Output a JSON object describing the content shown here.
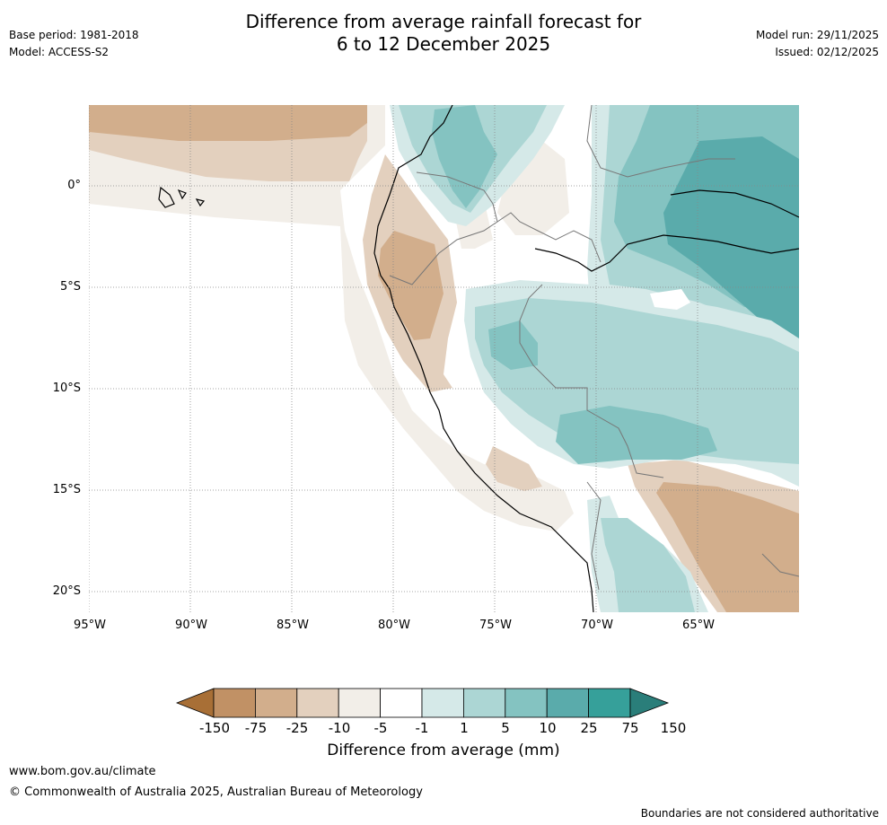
{
  "header": {
    "title_line1": "Difference from average rainfall forecast for",
    "title_line2": "6 to 12 December 2025",
    "base_period": "Base period: 1981-2018",
    "model": "Model: ACCESS-S2",
    "model_run": "Model run: 29/11/2025",
    "issued": "Issued: 02/12/2025"
  },
  "map": {
    "lat_labels": [
      "0°",
      "5°S",
      "10°S",
      "15°S",
      "20°S"
    ],
    "lon_labels": [
      "95°W",
      "90°W",
      "85°W",
      "80°W",
      "75°W",
      "70°W",
      "65°W"
    ],
    "lat_values": [
      0,
      -5,
      -10,
      -15,
      -20
    ],
    "lon_values": [
      -95,
      -90,
      -85,
      -80,
      -75,
      -70,
      -65
    ],
    "extent": {
      "lon_min": -95,
      "lon_max": -60,
      "lat_min": -21,
      "lat_max": 4
    }
  },
  "colorbar": {
    "labels": [
      "-150",
      "-75",
      "-25",
      "-10",
      "-5",
      "-1",
      "1",
      "5",
      "10",
      "25",
      "75",
      "150"
    ],
    "colors": [
      "#a86f36",
      "#c19165",
      "#d2ae8c",
      "#e3d0be",
      "#f2eee8",
      "#ffffff",
      "#d5e9e8",
      "#acd6d4",
      "#84c3c1",
      "#5aabab",
      "#36a09a",
      "#2a7e7a"
    ],
    "title": "Difference from average (mm)"
  },
  "footer": {
    "url": "www.bom.gov.au/climate",
    "copyright": "© Commonwealth of Australia 2025, Australian Bureau of Meteorology",
    "disclaimer": "Boundaries are not considered authoritative"
  }
}
